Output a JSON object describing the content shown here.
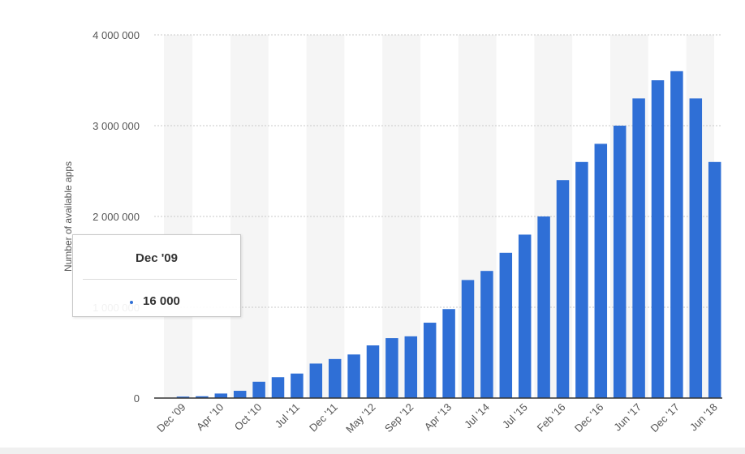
{
  "chart_data": {
    "type": "bar",
    "ylabel": "Number of available apps",
    "ylim": [
      0,
      4000000
    ],
    "yticks": [
      0,
      1000000,
      2000000,
      3000000,
      4000000
    ],
    "ytick_labels": [
      "0",
      "1 000 000",
      "2 000 000",
      "3 000 000",
      "4 000 000"
    ],
    "xtick_labels": [
      "Dec '09",
      "Apr '10",
      "Oct '10",
      "Jul '11",
      "Dec '11",
      "May '12",
      "Sep '12",
      "Apr '13",
      "Jul '14",
      "Jul '15",
      "Feb '16",
      "Dec '16",
      "Jun '17",
      "Dec '17",
      "Jun '18"
    ],
    "values": [
      16000,
      20000,
      50000,
      80000,
      180000,
      230000,
      270000,
      380000,
      430000,
      480000,
      580000,
      660000,
      680000,
      830000,
      980000,
      1300000,
      1400000,
      1600000,
      1800000,
      2000000,
      2400000,
      2600000,
      2800000,
      3000000,
      3300000,
      3500000,
      3600000,
      3300000,
      2600000
    ],
    "bar_color": "#2f6fd6",
    "grid": true
  },
  "tooltip": {
    "title": "Dec '09",
    "value": "16 000"
  }
}
